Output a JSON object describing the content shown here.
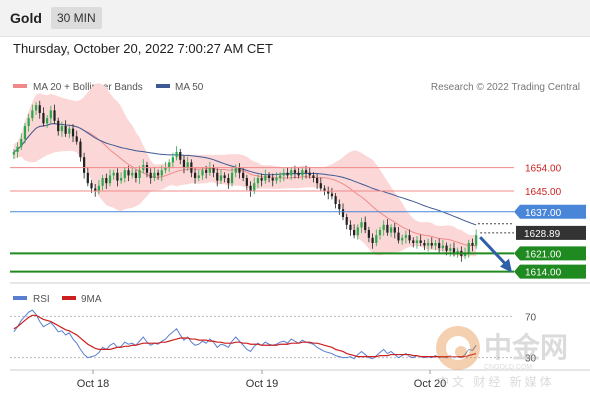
{
  "header": {
    "title": "Gold",
    "timeframe": "30 MIN",
    "datetime": "Thursday, October 20, 2022 7:00:27 AM CET"
  },
  "colors": {
    "up": "#2aa84a",
    "down": "#222222",
    "ma20": "#f08a8a",
    "bands_fill": "#fbd7d7",
    "ma50": "#3e5a94",
    "resistance": "#f08a8a",
    "pivot": "#4a86d8",
    "support": "#1f8a1f",
    "arrow": "#2f5fa8",
    "rsi": "#5a7fd0",
    "rsi_ma": "#cc1f1f"
  },
  "watermark": {
    "brand": "中金网",
    "sub": "CNGOLD.COM",
    "tagline": "中文 财经 新媒体"
  },
  "chart_data": [
    {
      "type": "candlestick",
      "legend": [
        {
          "label": "MA 20 + Bollinger Bands",
          "color_key": "ma20"
        },
        {
          "label": "MA 50",
          "color_key": "ma50"
        }
      ],
      "credit": "Research © 2022 Trading Central",
      "x_labels": [
        "Oct 18",
        "Oct 19",
        "Oct 20"
      ],
      "ylim": [
        1610,
        1680
      ],
      "close": [
        1660,
        1662,
        1665,
        1670,
        1673,
        1676,
        1678,
        1675,
        1671,
        1673,
        1676,
        1672,
        1668,
        1670,
        1667,
        1669,
        1666,
        1664,
        1658,
        1652,
        1648,
        1646,
        1645,
        1647,
        1650,
        1648,
        1651,
        1652,
        1649,
        1650,
        1653,
        1651,
        1652,
        1650,
        1653,
        1655,
        1652,
        1650,
        1652,
        1651,
        1653,
        1654,
        1656,
        1658,
        1660,
        1657,
        1654,
        1656,
        1652,
        1650,
        1651,
        1653,
        1652,
        1654,
        1652,
        1649,
        1651,
        1650,
        1648,
        1652,
        1654,
        1652,
        1650,
        1647,
        1645,
        1648,
        1650,
        1649,
        1651,
        1650,
        1649,
        1650,
        1651,
        1652,
        1651,
        1653,
        1652,
        1651,
        1653,
        1652,
        1651,
        1650,
        1648,
        1646,
        1645,
        1644,
        1643,
        1640,
        1638,
        1635,
        1632,
        1630,
        1628,
        1631,
        1633,
        1630,
        1627,
        1625,
        1628,
        1630,
        1632,
        1629,
        1631,
        1629,
        1626,
        1627,
        1628,
        1626,
        1625,
        1626,
        1625,
        1624,
        1625,
        1624,
        1625,
        1623,
        1624,
        1622,
        1623,
        1621,
        1622,
        1620,
        1621,
        1625,
        1624,
        1628
      ],
      "levels": [
        {
          "value": 1654.0,
          "label": "1654.00",
          "kind": "resistance"
        },
        {
          "value": 1645.0,
          "label": "1645.00",
          "kind": "resistance"
        },
        {
          "value": 1637.0,
          "label": "1637.00",
          "kind": "pivot"
        },
        {
          "value": 1628.89,
          "label": "1628.89",
          "kind": "last"
        },
        {
          "value": 1621.0,
          "label": "1621.00",
          "kind": "support"
        },
        {
          "value": 1614.0,
          "label": "1614.00",
          "kind": "support"
        }
      ]
    },
    {
      "type": "line",
      "legend": [
        {
          "label": "RSI",
          "color_key": "rsi"
        },
        {
          "label": "9MA",
          "color_key": "rsi_ma"
        }
      ],
      "ylim": [
        20,
        80
      ],
      "yticks": [
        {
          "value": 70,
          "label": "70"
        },
        {
          "value": 30,
          "label": "30"
        }
      ],
      "rsi": [
        55,
        60,
        66,
        70,
        74,
        76,
        72,
        65,
        60,
        62,
        64,
        60,
        55,
        56,
        52,
        54,
        48,
        44,
        38,
        33,
        30,
        31,
        32,
        35,
        40,
        38,
        42,
        44,
        40,
        41,
        45,
        43,
        44,
        42,
        46,
        50,
        45,
        42,
        44,
        43,
        46,
        48,
        52,
        55,
        58,
        52,
        47,
        50,
        45,
        42,
        43,
        46,
        44,
        48,
        45,
        40,
        43,
        42,
        40,
        46,
        50,
        46,
        42,
        38,
        36,
        41,
        44,
        42,
        45,
        43,
        42,
        43,
        45,
        46,
        44,
        48,
        46,
        44,
        47,
        45,
        44,
        43,
        40,
        38,
        36,
        35,
        34,
        32,
        31,
        30,
        30,
        31,
        29,
        33,
        36,
        33,
        30,
        29,
        32,
        35,
        38,
        34,
        36,
        33,
        30,
        32,
        34,
        31,
        30,
        32,
        31,
        30,
        31,
        30,
        32,
        30,
        31,
        30,
        32,
        30,
        31,
        30,
        33,
        38,
        37,
        42
      ],
      "rsi_ma": [
        58,
        60,
        63,
        66,
        69,
        71,
        71,
        69,
        67,
        66,
        65,
        63,
        61,
        59,
        57,
        56,
        54,
        52,
        49,
        46,
        43,
        41,
        39,
        38,
        38,
        38,
        38,
        39,
        40,
        40,
        41,
        41,
        42,
        42,
        43,
        44,
        44,
        44,
        44,
        44,
        45,
        45,
        46,
        47,
        48,
        49,
        49,
        49,
        48,
        48,
        47,
        47,
        47,
        46,
        46,
        45,
        45,
        44,
        44,
        44,
        45,
        45,
        44,
        44,
        43,
        43,
        43,
        42,
        42,
        42,
        42,
        42,
        43,
        43,
        43,
        44,
        44,
        44,
        45,
        45,
        45,
        44,
        44,
        43,
        42,
        41,
        40,
        38,
        37,
        36,
        34,
        33,
        32,
        31,
        31,
        31,
        31,
        31,
        31,
        32,
        32,
        32,
        33,
        33,
        33,
        33,
        33,
        33,
        32,
        32,
        31,
        31,
        31,
        31,
        31,
        31,
        31,
        31,
        31,
        31,
        31,
        31,
        31,
        32,
        33,
        34
      ]
    }
  ]
}
